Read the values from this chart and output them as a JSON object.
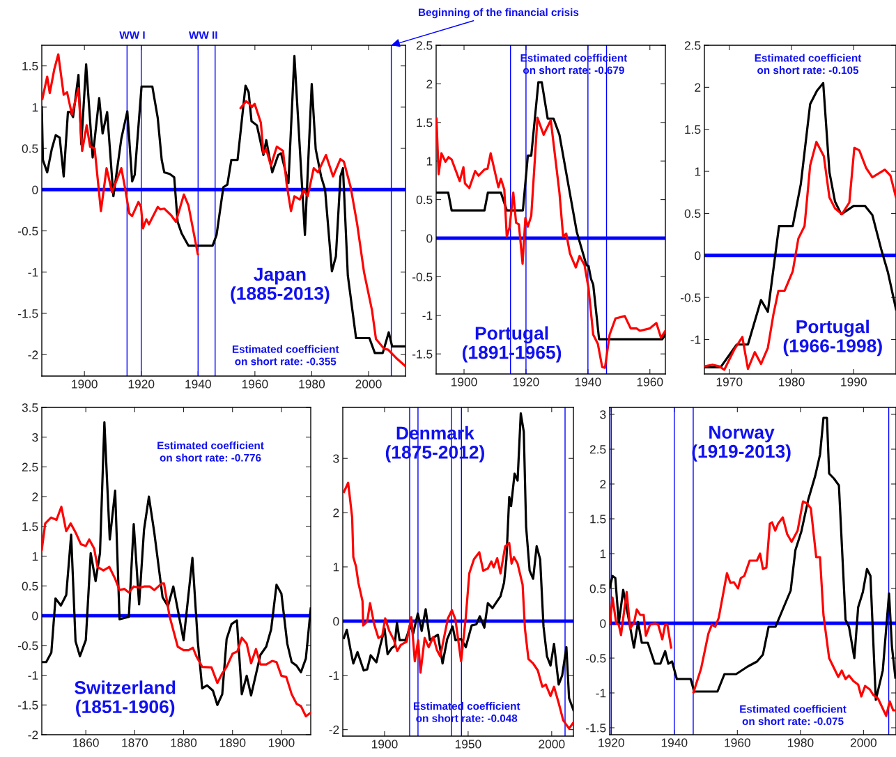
{
  "chart_data": [
    {
      "type": "line",
      "xlim": [
        1885,
        2013
      ],
      "ylim": [
        -2.26,
        1.75
      ],
      "xticks": [
        1900,
        1920,
        1940,
        1960,
        1980,
        2000
      ],
      "yticks": [
        -2,
        -1.5,
        -1,
        -0.5,
        0,
        0.5,
        1,
        1.5
      ],
      "series": [
        {
          "color": "#000000",
          "x": [
            1885,
            1885.4,
            1886.9,
            1888.5,
            1889.9,
            1891.3,
            1892.7,
            1894.2,
            1895.1,
            1896,
            1897.9,
            1898.9,
            1900.6,
            1902.9,
            1905.2,
            1906.4,
            1908,
            1910.2,
            1913,
            1915.1,
            1916.8,
            1917.7,
            1920.1,
            1923.9,
            1925.8,
            1927.2,
            1928.1,
            1930,
            1931.6,
            1932.8,
            1934.2,
            1936.6,
            1945.1,
            1946.5,
            1948.9,
            1950.3,
            1951.7,
            1953.9,
            1956.7,
            1957.8,
            1958.8,
            1960.7,
            1963,
            1964,
            1966.1,
            1968.2,
            1969.2,
            1971.8,
            1973.9,
            1977.6,
            1980,
            1981.4,
            1983.3,
            1984.7,
            1987.1,
            1988.5,
            1990.1,
            1991,
            1992.7,
            1995.6,
            2000.3,
            2002.2,
            2005,
            2007.1,
            2008.3,
            2013
          ],
          "values": [
            1.0,
            0.36,
            0.21,
            0.49,
            0.66,
            0.63,
            0.16,
            0.94,
            0.94,
            0.88,
            1.39,
            0.55,
            1.52,
            0.39,
            1.11,
            0.68,
            0.94,
            -0.08,
            0.62,
            0.95,
            0.1,
            0.18,
            1.25,
            1.25,
            0.87,
            0.36,
            0.21,
            0.19,
            0.15,
            -0.39,
            -0.53,
            -0.68,
            -0.68,
            -0.55,
            0.03,
            0.06,
            0.36,
            0.36,
            1.26,
            1.18,
            0.83,
            0.78,
            0.42,
            0.6,
            0.21,
            0.42,
            0.44,
            0.08,
            1.62,
            -0.55,
            1.28,
            0.49,
            0.16,
            0.0,
            -0.99,
            -0.81,
            0.16,
            0.26,
            -1.04,
            -1.8,
            -1.8,
            -1.98,
            -1.98,
            -1.73,
            -1.9,
            -1.9
          ]
        },
        {
          "color": "#ff0000",
          "x": [
            1885.2,
            1886.9,
            1887.8,
            1889.4,
            1890.8,
            1892.7,
            1893.9,
            1895.6,
            1897.9,
            1899.2,
            1900.8,
            1902,
            1903.6,
            1905.8,
            1907.8,
            1909.7,
            1913,
            1914.4,
            1915.8,
            1916.8,
            1919,
            1919.9,
            1920.6,
            1921.8,
            1922.7,
            1925.8,
            1926.7,
            1928.1,
            1930.5,
            1932.2,
            1935,
            1936.6,
            1939.9,
            1947,
            1955,
            1956.9,
            1958.1,
            1958.9,
            1959.9,
            1962.1,
            1963,
            1964,
            1965.6,
            1967.7,
            1969.9,
            1971.2,
            1972.7,
            1973.9,
            1975.8,
            1977.2,
            1978.6,
            1980.7,
            1982.2,
            1985,
            1987.5,
            1990.1,
            1991.3,
            1993.7,
            1996,
            1998.4,
            2001.2,
            2002.6,
            2005.5,
            2006.9,
            2009.7,
            2013
          ],
          "values": [
            1.1,
            1.37,
            1.17,
            1.46,
            1.64,
            1.15,
            1.18,
            0.91,
            1.23,
            0.47,
            0.78,
            0.52,
            0.5,
            -0.26,
            0.26,
            -0.03,
            0.26,
            0.0,
            -0.29,
            -0.32,
            -0.15,
            -0.21,
            -0.47,
            -0.36,
            -0.42,
            -0.21,
            -0.24,
            -0.23,
            -0.31,
            -0.39,
            -0.06,
            -0.19,
            -0.78,
            null,
            0.99,
            1.07,
            1.04,
            1.0,
            1.04,
            0.81,
            0.44,
            0.49,
            0.29,
            0.52,
            0.47,
            0.06,
            -0.26,
            -0.08,
            -0.12,
            -0.01,
            -0.08,
            0.26,
            0.21,
            0.42,
            0.16,
            0.37,
            0.34,
            0.03,
            -0.42,
            -1.0,
            -1.46,
            -1.81,
            -1.93,
            -1.94,
            -2.04,
            -2.14
          ]
        }
      ],
      "ref_lines": [
        {
          "axis": "y",
          "value": 0,
          "color": "#0000ff"
        },
        {
          "axis": "x",
          "value": 1915,
          "color": "#0000ff"
        },
        {
          "axis": "x",
          "value": 1920,
          "color": "#0000ff"
        },
        {
          "axis": "x",
          "value": 1940,
          "color": "#0000ff"
        },
        {
          "axis": "x",
          "value": 1946,
          "color": "#0000ff"
        },
        {
          "axis": "x",
          "value": 2008,
          "color": "#0000ff"
        }
      ],
      "annotations": [
        "Japan\n(1885-2013)",
        "Estimated coefficient\non short rate: -0.355",
        "WW I",
        "WW II",
        {
          "text": "Beginning of the financial crisis",
          "x": 2008,
          "y": 1.75
        }
      ]
    },
    {
      "type": "line",
      "xlim": [
        1891,
        1965
      ],
      "ylim": [
        -1.76,
        2.5
      ],
      "xticks": [
        1900,
        1920,
        1940,
        1960
      ],
      "yticks": [
        -1.5,
        -1,
        -0.5,
        0,
        0.5,
        1,
        1.5,
        2,
        2.5
      ],
      "series": [
        {
          "color": "#000000",
          "x": [
            1891,
            1894.9,
            1896,
            1906.6,
            1907.7,
            1911.9,
            1913.8,
            1919,
            1920.6,
            1921.7,
            1924,
            1925.1,
            1927,
            1928.9,
            1930.8,
            1936.4,
            1939.5,
            1940.2,
            1941,
            1941.7,
            1943.6,
            1964,
            1965
          ],
          "values": [
            0.59,
            0.59,
            0.36,
            0.36,
            0.59,
            0.59,
            0.36,
            0.36,
            1.07,
            1.07,
            2.02,
            2.02,
            1.55,
            1.55,
            1.34,
            0.08,
            -0.35,
            -0.36,
            -0.53,
            -0.6,
            -1.31,
            -1.31,
            -1.25
          ]
        },
        {
          "color": "#ff0000",
          "x": [
            1891.1,
            1891.8,
            1892.7,
            1894,
            1895,
            1896,
            1898.6,
            1899.8,
            1900.3,
            1901.7,
            1903.6,
            1904.7,
            1906.6,
            1907.6,
            1908.6,
            1911.1,
            1911.9,
            1913,
            1913.8,
            1914.7,
            1915.9,
            1916.8,
            1917.7,
            1918.9,
            1919.8,
            1920.6,
            1921.7,
            1922.8,
            1923.7,
            1925.7,
            1928,
            1930.8,
            1932,
            1933,
            1934.2,
            1936.1,
            1937.3,
            1938.9,
            1940.2,
            1941.7,
            1943.2,
            1944.6,
            1945.5,
            1947,
            1948.9,
            1951.9,
            1953.8,
            1955.7,
            1956.8,
            1959.9,
            1962.1,
            1963.6,
            1965
          ],
          "values": [
            1.55,
            0.83,
            1.1,
            0.99,
            1.05,
            1.02,
            0.74,
            0.92,
            0.71,
            0.65,
            0.87,
            0.81,
            0.89,
            0.9,
            1.1,
            0.66,
            0.77,
            0.63,
            0.02,
            0.14,
            0.59,
            0.2,
            0.18,
            -0.33,
            0.26,
            0.15,
            0.29,
            0.98,
            1.56,
            1.34,
            1.53,
            0.59,
            0.02,
            0.06,
            -0.2,
            -0.38,
            -0.23,
            -0.35,
            -0.65,
            -1.25,
            -1.37,
            -1.67,
            -1.68,
            -1.25,
            -1.04,
            -1.01,
            -1.17,
            -1.17,
            -1.2,
            -1.17,
            -1.1,
            -1.29,
            -1.2
          ]
        }
      ],
      "ref_lines": [
        {
          "axis": "y",
          "value": 0,
          "color": "#0000ff"
        },
        {
          "axis": "x",
          "value": 1915,
          "color": "#0000ff"
        },
        {
          "axis": "x",
          "value": 1920,
          "color": "#0000ff"
        },
        {
          "axis": "x",
          "value": 1940,
          "color": "#0000ff"
        },
        {
          "axis": "x",
          "value": 1946,
          "color": "#0000ff"
        }
      ],
      "annotations": [
        "Estimated coefficient\non short rate: -0.679",
        "Portugal\n(1891-1965)"
      ]
    },
    {
      "type": "line",
      "xlim": [
        1966,
        1996.8
      ],
      "ylim": [
        -1.41,
        2.5
      ],
      "xticks": [
        1970,
        1980,
        1990
      ],
      "yticks": [
        -1,
        -0.5,
        0,
        0.5,
        1,
        1.5,
        2,
        2.5
      ],
      "series": [
        {
          "color": "#000000",
          "x": [
            1966,
            1968.6,
            1971.2,
            1973,
            1975.1,
            1976.2,
            1978,
            1980.2,
            1981.5,
            1983,
            1984.1,
            1985.1,
            1986.1,
            1987,
            1988,
            1990,
            1991.8,
            1993,
            1994.4,
            1995.5,
            1996.8
          ],
          "values": [
            -1.33,
            -1.33,
            -1.06,
            -1.06,
            -0.53,
            -0.67,
            0.35,
            0.35,
            0.85,
            1.8,
            1.96,
            2.05,
            0.99,
            0.64,
            0.49,
            0.59,
            0.59,
            0.48,
            0.08,
            -0.2,
            -0.64
          ]
        },
        {
          "color": "#ff0000",
          "x": [
            1966,
            1967.3,
            1968.4,
            1969.2,
            1970.8,
            1972.1,
            1973,
            1974.1,
            1975.1,
            1976.2,
            1977.1,
            1977.9,
            1978.9,
            1980.2,
            1981.1,
            1982.1,
            1983,
            1984,
            1985.2,
            1986.1,
            1987,
            1988.1,
            1989.3,
            1990.1,
            1990.9,
            1992,
            1993,
            1995,
            1995.9,
            1996.8
          ],
          "values": [
            -1.32,
            -1.3,
            -1.32,
            -1.36,
            -1.12,
            -0.97,
            -1.35,
            -1.15,
            -1.29,
            -1.1,
            -0.7,
            -0.42,
            -0.42,
            -0.19,
            0.2,
            0.35,
            1.07,
            1.35,
            1.18,
            0.69,
            0.56,
            0.49,
            0.63,
            1.28,
            1.25,
            1.04,
            0.93,
            1.02,
            0.95,
            0.69
          ]
        }
      ],
      "ref_lines": [
        {
          "axis": "y",
          "value": 0,
          "color": "#0000ff"
        }
      ],
      "annotations": [
        "Estimated coefficient\non short rate: -0.105",
        "Portugal\n(1966-1998)"
      ]
    },
    {
      "type": "line",
      "xlim": [
        1851,
        1906
      ],
      "ylim": [
        -2,
        3.5
      ],
      "xticks": [
        1860,
        1870,
        1880,
        1890,
        1900
      ],
      "yticks": [
        -2,
        -1.5,
        -1,
        -0.5,
        0,
        0.5,
        1,
        1.5,
        2,
        2.5,
        3,
        3.5
      ],
      "series": [
        {
          "color": "#000000",
          "x": [
            1851,
            1851.9,
            1852.95,
            1853.8,
            1854.9,
            1856,
            1857,
            1857.9,
            1858.8,
            1860,
            1861,
            1862,
            1862.9,
            1863.8,
            1864.9,
            1866,
            1866.9,
            1868.8,
            1869.8,
            1870.9,
            1871.9,
            1872.9,
            1874,
            1875.7,
            1876.8,
            1877.9,
            1880,
            1881.8,
            1882.9,
            1883.8,
            1884.8,
            1886,
            1886.9,
            1887.9,
            1888.8,
            1889.8,
            1890.9,
            1891.9,
            1892.9,
            1893.8,
            1895.7,
            1896.9,
            1897.9,
            1899,
            1900,
            1901.2,
            1902.1,
            1903.1,
            1904,
            1905,
            1906
          ],
          "values": [
            -0.78,
            -0.78,
            -0.62,
            0.29,
            0.17,
            0.35,
            1.36,
            -0.43,
            -0.68,
            -0.41,
            1.05,
            0.58,
            1.05,
            3.25,
            1.28,
            2.1,
            -0.06,
            -0.02,
            1.54,
            0.19,
            1.44,
            2.0,
            1.4,
            0.31,
            0.16,
            0.49,
            -0.41,
            0.97,
            -0.43,
            -1.22,
            -1.17,
            -1.26,
            -1.5,
            -1.32,
            -0.39,
            -0.14,
            -0.08,
            -1.32,
            -1.01,
            -1.34,
            -0.66,
            -0.52,
            -0.23,
            0.52,
            0.37,
            -0.47,
            -0.78,
            -0.84,
            -0.95,
            -0.72,
            0.12
          ]
        },
        {
          "color": "#ff0000",
          "x": [
            1851,
            1851.7,
            1852.9,
            1854,
            1855,
            1856,
            1856.9,
            1857.9,
            1859,
            1860,
            1860.7,
            1861.7,
            1862.4,
            1863.6,
            1864.8,
            1866,
            1866.9,
            1867.9,
            1868.8,
            1869.8,
            1871,
            1871.9,
            1873.1,
            1874,
            1875.5,
            1876,
            1877.1,
            1878.8,
            1880,
            1881,
            1881.9,
            1882.6,
            1883.8,
            1885.7,
            1886.9,
            1887.9,
            1888.8,
            1890,
            1891,
            1891.9,
            1892.9,
            1893.8,
            1894.8,
            1895.7,
            1896.9,
            1898.1,
            1899,
            1900,
            1901,
            1902.1,
            1903.1,
            1904,
            1905,
            1906
          ],
          "values": [
            1.11,
            1.55,
            1.65,
            1.61,
            1.83,
            1.42,
            1.55,
            1.4,
            1.2,
            1.17,
            1.28,
            1.13,
            0.82,
            0.76,
            0.82,
            0.62,
            0.43,
            0.45,
            0.39,
            0.49,
            0.47,
            0.49,
            0.49,
            0.43,
            0.54,
            0.54,
            0.0,
            -0.52,
            -0.58,
            -0.58,
            -0.54,
            -0.68,
            -0.86,
            -0.87,
            -1.13,
            -0.97,
            -0.86,
            -0.64,
            -0.6,
            -0.37,
            -0.47,
            -0.8,
            -0.56,
            -0.82,
            -0.82,
            -0.76,
            -0.78,
            -1.01,
            -1.03,
            -1.32,
            -1.48,
            -1.52,
            -1.69,
            -1.63
          ]
        }
      ],
      "ref_lines": [
        {
          "axis": "y",
          "value": 0,
          "color": "#0000ff"
        }
      ],
      "annotations": [
        "Estimated coefficient\non short rate: -0.776",
        "Switzerland\n(1851-1906)"
      ]
    },
    {
      "type": "line",
      "xlim": [
        1875,
        2013
      ],
      "ylim": [
        -2.12,
        3.94
      ],
      "xticks": [
        1900,
        1950,
        2000
      ],
      "yticks": [
        -2,
        -1,
        0,
        1,
        2,
        3
      ],
      "series": [
        {
          "color": "#000000",
          "x": [
            1875.7,
            1877.4,
            1879.9,
            1881.3,
            1883.8,
            1887.5,
            1889.6,
            1891.7,
            1895.1,
            1897.2,
            1900,
            1901.8,
            1904.2,
            1906,
            1907.4,
            1909,
            1912.5,
            1913.9,
            1915.3,
            1917.1,
            1919.9,
            1922.2,
            1924.6,
            1927.1,
            1931.9,
            1934.7,
            1937.5,
            1940.7,
            1942.4,
            1945.8,
            1948.6,
            1952.1,
            1954.9,
            1957,
            1959.7,
            1961.8,
            1964.6,
            1967.4,
            1969.4,
            1971.5,
            1972.9,
            1974.6,
            1975.7,
            1977.8,
            1979.6,
            1981.5,
            1983.3,
            1984.7,
            1986.8,
            1988.9,
            1991,
            1993.1,
            1995.1,
            1997.2,
            1999.3,
            2001.4,
            2004.2,
            2006.3,
            2008.8,
            2010.4,
            2013
          ],
          "values": [
            -0.31,
            -0.16,
            -0.57,
            -0.78,
            -0.57,
            -0.91,
            -0.89,
            -0.63,
            -0.76,
            -0.48,
            -0.14,
            -0.61,
            -0.5,
            -0.46,
            -0.03,
            -0.35,
            -0.35,
            -0.23,
            -0.06,
            -0.23,
            0.14,
            -0.18,
            0.22,
            -0.35,
            -0.25,
            -0.78,
            -0.33,
            -0.1,
            -0.35,
            -0.33,
            -0.48,
            -0.08,
            -0.06,
            0.09,
            -0.12,
            0.33,
            0.24,
            0.37,
            0.46,
            0.71,
            1.14,
            2.29,
            2.12,
            2.72,
            2.59,
            3.83,
            3.49,
            1.74,
            0.93,
            0.78,
            1.38,
            1.14,
            -0.1,
            -0.65,
            -0.82,
            -0.42,
            -1.17,
            -1.0,
            -0.48,
            -1.42,
            -1.64
          ]
        },
        {
          "color": "#ff0000",
          "x": [
            1875.7,
            1878.2,
            1879.2,
            1880.6,
            1881.3,
            1882.9,
            1884.3,
            1886.8,
            1887.2,
            1889.6,
            1891.3,
            1893.8,
            1896.3,
            1898.6,
            1900.4,
            1902.8,
            1905.6,
            1907.6,
            1909.7,
            1913.2,
            1916,
            1918.1,
            1920.1,
            1921.5,
            1924,
            1926.4,
            1929.2,
            1931.3,
            1933.3,
            1937.9,
            1940.3,
            1942.4,
            1945.8,
            1948.6,
            1950.7,
            1953.5,
            1956.7,
            1959,
            1961.8,
            1963.9,
            1965.3,
            1967.4,
            1969.4,
            1972.2,
            1974.6,
            1976,
            1977.4,
            1979.6,
            1982.6,
            1984,
            1986.1,
            1988.9,
            1991.7,
            1994.4,
            1996.5,
            1999.3,
            2001.4,
            2004.2,
            2006.9,
            2010.4,
            2013
          ],
          "values": [
            2.38,
            2.55,
            2.29,
            1.91,
            1.18,
            1.01,
            0.71,
            0.37,
            -0.08,
            -0.01,
            0.33,
            -0.06,
            -0.31,
            -0.27,
            0.05,
            -0.18,
            -0.35,
            -0.55,
            -0.44,
            -0.38,
            0.07,
            -0.74,
            -0.35,
            -0.95,
            -0.31,
            -0.48,
            -0.29,
            -0.53,
            -0.65,
            0.05,
            0.2,
            0.03,
            -0.74,
            0.07,
            0.88,
            1.14,
            1.27,
            0.93,
            0.97,
            1.1,
            0.99,
            1.16,
            0.88,
            1.38,
            1.44,
            1.06,
            1.18,
            1.06,
            0.67,
            -0.14,
            -0.7,
            -0.78,
            -0.91,
            -1.21,
            -1.17,
            -1.38,
            -1.21,
            -1.51,
            -1.83,
            -1.98,
            -1.87
          ]
        }
      ],
      "ref_lines": [
        {
          "axis": "y",
          "value": 0,
          "color": "#0000ff"
        },
        {
          "axis": "x",
          "value": 1915,
          "color": "#0000ff"
        },
        {
          "axis": "x",
          "value": 1920,
          "color": "#0000ff"
        },
        {
          "axis": "x",
          "value": 1940,
          "color": "#0000ff"
        },
        {
          "axis": "x",
          "value": 1946,
          "color": "#0000ff"
        },
        {
          "axis": "x",
          "value": 2008,
          "color": "#0000ff"
        }
      ],
      "annotations": [
        "Denmark\n(1875-2012)",
        "Estimated coefficient\non short rate: -0.048"
      ]
    },
    {
      "type": "line",
      "xlim": [
        1919.5,
        2010.3
      ],
      "ylim": [
        -1.6,
        3.1
      ],
      "xticks": [
        1920,
        1940,
        1960,
        1980,
        2000
      ],
      "yticks": [
        -1.5,
        -1,
        -0.5,
        0,
        0.5,
        1,
        1.5,
        2,
        2.5,
        3
      ],
      "series": [
        {
          "color": "#000000",
          "x": [
            1919.6,
            1920.4,
            1921.3,
            1922.4,
            1923.8,
            1925.3,
            1927.2,
            1928.5,
            1929.7,
            1931.6,
            1933.8,
            1935.6,
            1937.1,
            1938.1,
            1939.3,
            1940.8,
            1945.2,
            1946.3,
            1953.7,
            1955.9,
            1959.6,
            1963.3,
            1966.2,
            1968.1,
            1969.9,
            1972.1,
            1974.4,
            1976.9,
            1978.4,
            1980.3,
            1982.5,
            1984.7,
            1986.2,
            1987.3,
            1988.4,
            1989.1,
            1990.6,
            1992.2,
            1994.3,
            1995.4,
            1997.1,
            1998.3,
            1999.8,
            2001.1,
            2002.2,
            2003.9,
            2006.1,
            2008.1,
            2009,
            2010.1
          ],
          "values": [
            0.52,
            0.68,
            0.65,
            0.0,
            0.48,
            0.12,
            -0.35,
            0.02,
            -0.28,
            -0.28,
            -0.58,
            -0.58,
            -0.4,
            -0.58,
            -0.55,
            -0.8,
            -0.8,
            -0.98,
            -0.98,
            -0.73,
            -0.73,
            -0.62,
            -0.55,
            -0.45,
            -0.05,
            -0.05,
            0.2,
            0.47,
            1.05,
            1.32,
            1.78,
            2.12,
            2.42,
            2.95,
            2.95,
            2.15,
            2.08,
            1.98,
            0.05,
            -0.05,
            -0.5,
            0.23,
            0.45,
            0.78,
            0.68,
            -1.1,
            -0.68,
            0.43,
            -0.33,
            -0.78
          ]
        },
        {
          "color": "#ff0000",
          "x": [
            1919.6,
            1920.4,
            1921.6,
            1922.4,
            1923.1,
            1924.9,
            1926,
            1927.2,
            1928.1,
            1929.2,
            1930.3,
            1931,
            1932.3,
            1933.8,
            1934.9,
            1936.2,
            1937.1,
            1937.8,
            1939,
            1942.5,
            1946.1,
            1948.5,
            1950.8,
            1951.9,
            1953,
            1954.1,
            1956.7,
            1957.8,
            1958.9,
            1960.2,
            1961.1,
            1962.2,
            1963.9,
            1966.2,
            1967.2,
            1968.1,
            1969.2,
            1970.3,
            1971,
            1972,
            1972.9,
            1974.4,
            1975.8,
            1977.2,
            1979.1,
            1980.8,
            1982.1,
            1983.3,
            1985,
            1986.2,
            1987.3,
            1989.1,
            1992,
            1993.1,
            1994.3,
            1995.4,
            1996.8,
            1998.3,
            1999.3,
            2000.5,
            2002,
            2003.1,
            2004.6,
            2007.2,
            2008.3,
            2009.4,
            2010.3
          ],
          "values": [
            0.0,
            0.37,
            0.0,
            -0.02,
            -0.17,
            0.45,
            -0.07,
            0.0,
            0.2,
            0.12,
            0.12,
            -0.18,
            -0.02,
            0.0,
            -0.02,
            -0.23,
            -0.02,
            -0.02,
            -0.35,
            null,
            -0.99,
            -0.65,
            -0.15,
            -0.02,
            -0.05,
            0.08,
            0.72,
            0.58,
            0.59,
            0.5,
            0.65,
            0.68,
            0.9,
            0.9,
            1.0,
            0.78,
            0.8,
            1.43,
            1.45,
            1.33,
            1.43,
            1.52,
            1.28,
            1.17,
            1.33,
            1.75,
            1.72,
            1.65,
            0.95,
            0.95,
            0.12,
            -0.5,
            -0.77,
            -0.68,
            -0.8,
            -0.75,
            -0.83,
            -0.88,
            -1.05,
            -0.9,
            -0.95,
            -1.03,
            -1.08,
            -1.33,
            -1.12,
            -1.25,
            -1.25
          ]
        }
      ],
      "ref_lines": [
        {
          "axis": "y",
          "value": 0,
          "color": "#0000ff"
        },
        {
          "axis": "x",
          "value": 1920,
          "color": "#0000ff"
        },
        {
          "axis": "x",
          "value": 1940,
          "color": "#0000ff"
        },
        {
          "axis": "x",
          "value": 1946,
          "color": "#0000ff"
        },
        {
          "axis": "x",
          "value": 2008,
          "color": "#0000ff"
        }
      ],
      "annotations": [
        "Norway\n(1919-2013)",
        "Estimated coefficient\non short rate: -0.075"
      ]
    }
  ]
}
